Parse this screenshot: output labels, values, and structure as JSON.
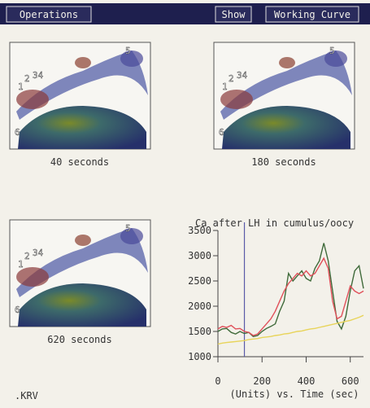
{
  "menu": {
    "items": [
      "Operations",
      "Show",
      "Working Curve"
    ]
  },
  "panels": [
    {
      "caption": "40 seconds"
    },
    {
      "caption": "180 seconds"
    },
    {
      "caption": "620 seconds"
    }
  ],
  "region_labels": [
    "1",
    "2",
    "34",
    "5",
    "6"
  ],
  "footer": ".KRV",
  "chart_data": {
    "type": "line",
    "title": "Ca after LH in cumulus/oocy",
    "x_label": "(Units) vs. Time (sec)",
    "x": [
      0,
      20,
      40,
      60,
      80,
      100,
      120,
      140,
      160,
      180,
      200,
      220,
      240,
      260,
      280,
      300,
      320,
      340,
      360,
      380,
      400,
      420,
      440,
      460,
      480,
      500,
      520,
      540,
      560,
      580,
      600,
      620,
      640,
      660
    ],
    "series": [
      {
        "color": "#3f6a3a",
        "values": [
          1500,
          1550,
          1560,
          1480,
          1450,
          1500,
          1460,
          1480,
          1400,
          1420,
          1500,
          1560,
          1600,
          1650,
          1900,
          2100,
          2650,
          2500,
          2600,
          2700,
          2550,
          2500,
          2750,
          2900,
          3250,
          2900,
          2300,
          1700,
          1550,
          1800,
          2300,
          2700,
          2800,
          2350
        ]
      },
      {
        "color": "#e0505a",
        "values": [
          1550,
          1600,
          1580,
          1620,
          1550,
          1560,
          1500,
          1480,
          1420,
          1450,
          1550,
          1650,
          1750,
          1900,
          2100,
          2300,
          2450,
          2550,
          2650,
          2600,
          2700,
          2600,
          2650,
          2800,
          2950,
          2750,
          2100,
          1750,
          1800,
          2100,
          2400,
          2300,
          2250,
          2300
        ]
      },
      {
        "color": "#e8d45a",
        "values": [
          1250,
          1270,
          1280,
          1290,
          1300,
          1310,
          1320,
          1340,
          1350,
          1360,
          1380,
          1390,
          1400,
          1420,
          1430,
          1450,
          1460,
          1480,
          1500,
          1510,
          1530,
          1550,
          1560,
          1580,
          1600,
          1620,
          1640,
          1660,
          1680,
          1700,
          1720,
          1750,
          1780,
          1820
        ]
      }
    ],
    "marker_x": 120,
    "marker_color": "#5a5aa8",
    "xlim": [
      0,
      660
    ],
    "xticks": [
      0,
      200,
      400,
      600
    ],
    "ylim": [
      1000,
      3500
    ],
    "yticks": [
      1000,
      1500,
      2000,
      2500,
      3000,
      3500
    ]
  }
}
